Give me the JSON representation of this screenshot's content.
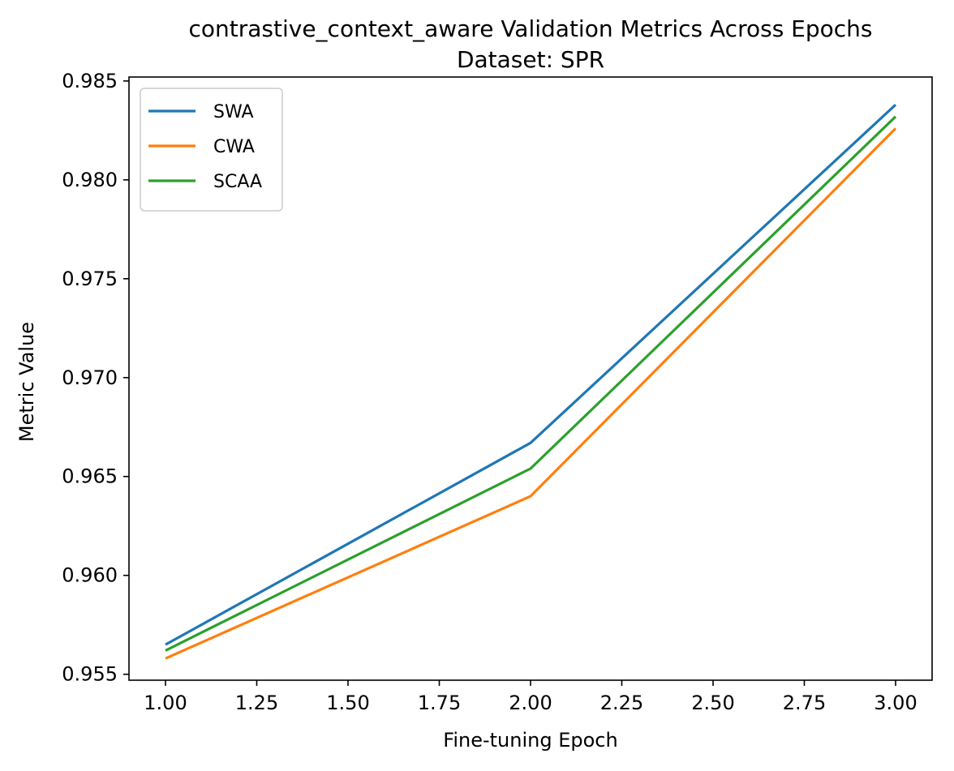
{
  "chart_data": {
    "type": "line",
    "title": "contrastive_context_aware Validation Metrics Across Epochs",
    "subtitle": "Dataset: SPR",
    "xlabel": "Fine-tuning Epoch",
    "ylabel": "Metric Value",
    "x": [
      1,
      2,
      3
    ],
    "xlim": [
      0.9,
      3.1
    ],
    "ylim": [
      0.9547,
      0.9852
    ],
    "x_ticks": [
      1.0,
      1.25,
      1.5,
      1.75,
      2.0,
      2.25,
      2.5,
      2.75,
      3.0
    ],
    "x_tick_labels": [
      "1.00",
      "1.25",
      "1.50",
      "1.75",
      "2.00",
      "2.25",
      "2.50",
      "2.75",
      "3.00"
    ],
    "y_ticks": [
      0.955,
      0.96,
      0.965,
      0.97,
      0.975,
      0.98,
      0.985
    ],
    "y_tick_labels": [
      "0.955",
      "0.960",
      "0.965",
      "0.970",
      "0.975",
      "0.980",
      "0.985"
    ],
    "grid": false,
    "legend_position": "top-left",
    "series": [
      {
        "name": "SWA",
        "color": "#1f77b4",
        "values": [
          0.9565,
          0.9667,
          0.9838
        ]
      },
      {
        "name": "CWA",
        "color": "#ff7f0e",
        "values": [
          0.9558,
          0.964,
          0.9826
        ]
      },
      {
        "name": "SCAA",
        "color": "#2ca02c",
        "values": [
          0.9562,
          0.9654,
          0.9832
        ]
      }
    ]
  }
}
